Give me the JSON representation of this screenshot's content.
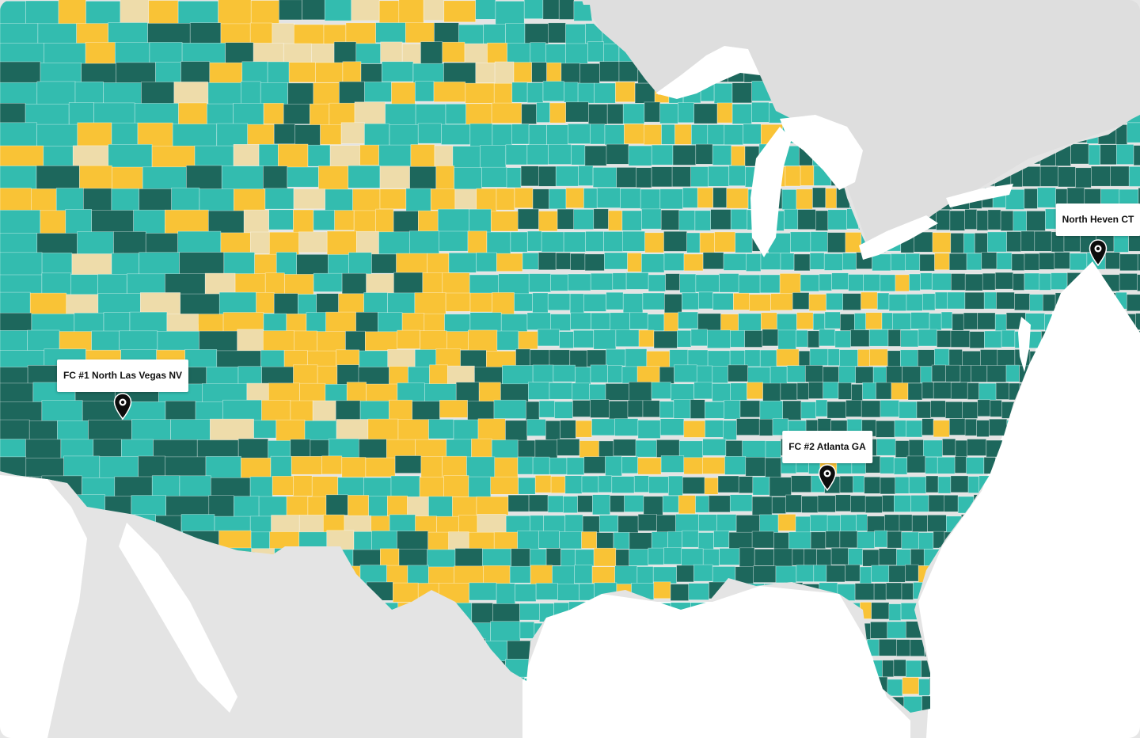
{
  "map": {
    "colors": {
      "land_background": "#e6e6e6",
      "water": "#ffffff",
      "canada_land": "#dedede",
      "mexico_land": "#dcdcdc",
      "county_borders": "#ffffff"
    },
    "legend_categories": [
      {
        "id": "high",
        "color": "#1d675c"
      },
      {
        "id": "medium",
        "color": "#33bcaf"
      },
      {
        "id": "low",
        "color": "#f9c336"
      },
      {
        "id": "very-low",
        "color": "#eedcaa"
      }
    ],
    "markers": [
      {
        "id": "north-las-vegas",
        "label": "FC #1 North Las Vegas NV",
        "icon": "map-pin-icon"
      },
      {
        "id": "atlanta",
        "label": "FC #2 Atlanta GA",
        "icon": "map-pin-icon"
      },
      {
        "id": "north-haven",
        "label": "North Heven CT",
        "icon": "map-pin-icon"
      }
    ]
  }
}
